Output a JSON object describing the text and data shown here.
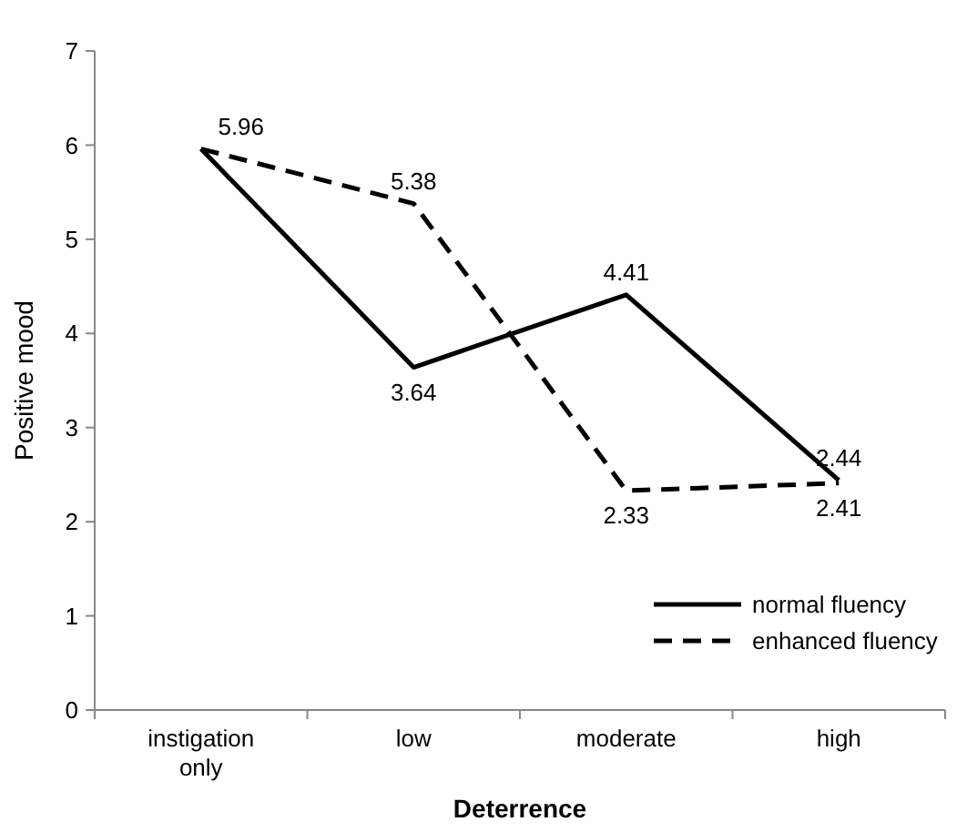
{
  "chart_data": {
    "type": "line",
    "xlabel": "Deterrence",
    "ylabel": "Positive mood",
    "categories": [
      "instigation only",
      "low",
      "moderate",
      "high"
    ],
    "series": [
      {
        "name": "normal fluency",
        "color": "#000000",
        "line_style": "solid",
        "values": [
          5.96,
          3.64,
          4.41,
          2.44
        ],
        "value_labels": [
          null,
          "3.64",
          "4.41",
          "2.44"
        ]
      },
      {
        "name": "enhanced fluency",
        "color": "#000000",
        "line_style": "dashed",
        "values": [
          5.96,
          5.38,
          2.33,
          2.41
        ],
        "value_labels": [
          "5.96",
          "5.38",
          "2.33",
          "2.41"
        ]
      }
    ],
    "ylim": [
      0,
      7
    ],
    "yticks": [
      0,
      1,
      2,
      3,
      4,
      5,
      6,
      7
    ],
    "grid": false,
    "legend": "bottom right",
    "marker": "none"
  }
}
